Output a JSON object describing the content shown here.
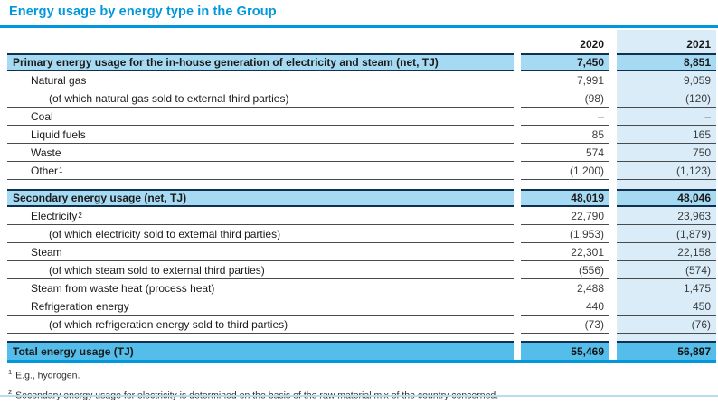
{
  "title": "Energy usage by energy type in the Group",
  "colors": {
    "accent_blue": "#0098db",
    "section_row_bg": "#a6d9f2",
    "column_2021_band": "#d9ecf8",
    "total_row_bg": "#54bde9",
    "dark_border": "#10304f",
    "bottom_rule": "#b5ddf1"
  },
  "table": {
    "col_headers": {
      "y2020": "2020",
      "y2021": "2021"
    },
    "rows": [
      {
        "type": "section",
        "label": "Primary energy usage for the in-house generation of electricity and steam (net, TJ)",
        "v2020": "7,450",
        "v2021": "8,851"
      },
      {
        "type": "l1",
        "label": "Natural gas",
        "v2020": "7,991",
        "v2021": "9,059"
      },
      {
        "type": "l2",
        "label": "(of which natural gas sold to external third parties)",
        "v2020": "(98)",
        "v2021": "(120)"
      },
      {
        "type": "l1",
        "label": "Coal",
        "v2020": "–",
        "v2021": "–"
      },
      {
        "type": "l1",
        "label": "Liquid fuels",
        "v2020": "85",
        "v2021": "165"
      },
      {
        "type": "l1",
        "label": "Waste",
        "v2020": "574",
        "v2021": "750"
      },
      {
        "type": "l1",
        "label": "Other",
        "sup": "1",
        "v2020": "(1,200)",
        "v2021": "(1,123)"
      },
      {
        "type": "section",
        "label": "Secondary energy usage (net, TJ)",
        "v2020": "48,019",
        "v2021": "48,046"
      },
      {
        "type": "l1",
        "label": "Electricity",
        "sup": "2",
        "v2020": "22,790",
        "v2021": "23,963"
      },
      {
        "type": "l2",
        "label": "(of which electricity sold to external third parties)",
        "v2020": "(1,953)",
        "v2021": "(1,879)"
      },
      {
        "type": "l1",
        "label": "Steam",
        "v2020": "22,301",
        "v2021": "22,158"
      },
      {
        "type": "l2",
        "label": "(of which steam sold to external third parties)",
        "v2020": "(556)",
        "v2021": "(574)"
      },
      {
        "type": "l1",
        "label": "Steam from waste heat (process heat)",
        "v2020": "2,488",
        "v2021": "1,475"
      },
      {
        "type": "l1",
        "label": "Refrigeration energy",
        "v2020": "440",
        "v2021": "450"
      },
      {
        "type": "l2",
        "label": "(of which refrigeration energy sold to third parties)",
        "v2020": "(73)",
        "v2021": "(76)"
      },
      {
        "type": "total",
        "label": "Total energy usage (TJ)",
        "v2020": "55,469",
        "v2021": "56,897"
      }
    ]
  },
  "footnotes": [
    {
      "sup": "1",
      "text": "E.g., hydrogen."
    },
    {
      "sup": "2",
      "text": "Secondary energy usage for electricity is determined on the basis of the raw material mix of the country concerned."
    }
  ]
}
